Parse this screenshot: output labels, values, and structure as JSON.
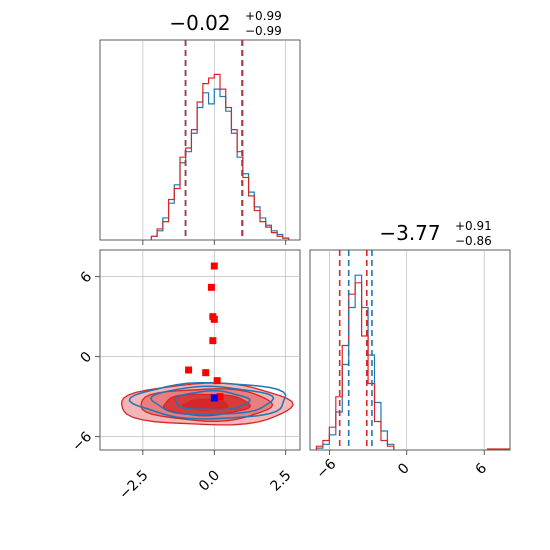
{
  "chart_data": {
    "type": "corner",
    "panels": [
      {
        "id": "param0-hist",
        "type": "histogram",
        "title_value": "−0.02",
        "title_plus": "+0.99",
        "title_minus": "−0.99",
        "xlim": [
          -4,
          3
        ],
        "grid": true,
        "series": [
          {
            "color": "#1f77b4",
            "quantiles": [
              -1.0,
              0.99
            ]
          },
          {
            "color": "#d62728",
            "quantiles": [
              -1.01,
              0.97
            ]
          }
        ],
        "bins": [
          -2.2,
          -2.0,
          -1.8,
          -1.6,
          -1.4,
          -1.2,
          -1.0,
          -0.8,
          -0.6,
          -0.4,
          -0.2,
          0.0,
          0.2,
          0.4,
          0.6,
          0.8,
          1.0,
          1.2,
          1.4,
          1.6,
          1.8,
          2.0,
          2.2,
          2.4,
          2.6
        ],
        "counts_blue": [
          0.02,
          0.05,
          0.12,
          0.2,
          0.3,
          0.42,
          0.48,
          0.58,
          0.72,
          0.8,
          0.74,
          0.82,
          0.78,
          0.7,
          0.58,
          0.45,
          0.36,
          0.26,
          0.18,
          0.12,
          0.08,
          0.05,
          0.03,
          0.01
        ],
        "counts_red": [
          0.02,
          0.06,
          0.1,
          0.22,
          0.28,
          0.45,
          0.5,
          0.6,
          0.75,
          0.85,
          0.88,
          0.9,
          0.82,
          0.72,
          0.6,
          0.48,
          0.34,
          0.24,
          0.16,
          0.1,
          0.07,
          0.04,
          0.02,
          0.01
        ]
      },
      {
        "id": "param1-hist",
        "type": "histogram",
        "title_value": "−3.77",
        "title_plus": "+0.91",
        "title_minus": "−0.86",
        "xlim": [
          -7.5,
          8
        ],
        "ticks": [
          "−6",
          "0",
          "6"
        ],
        "grid": true,
        "series": [
          {
            "color": "#1f77b4",
            "quantiles": [
              -4.5,
              -2.7
            ]
          },
          {
            "color": "#d62728",
            "quantiles": [
              -5.2,
              -3.1
            ]
          }
        ],
        "bins": [
          -7,
          -6.5,
          -6,
          -5.5,
          -5,
          -4.5,
          -4,
          -3.5,
          -3,
          -2.5,
          -2,
          -1.5,
          -1
        ],
        "counts_blue": [
          0.01,
          0.03,
          0.08,
          0.2,
          0.45,
          0.75,
          0.92,
          0.75,
          0.5,
          0.25,
          0.1,
          0.03
        ],
        "counts_red": [
          0.02,
          0.05,
          0.12,
          0.28,
          0.55,
          0.82,
          0.88,
          0.6,
          0.35,
          0.15,
          0.05,
          0.02
        ]
      },
      {
        "id": "joint",
        "type": "contour-scatter",
        "xlim": [
          -4,
          3
        ],
        "ylim": [
          -7,
          8
        ],
        "xticks": [
          "−2.5",
          "0.0",
          "2.5"
        ],
        "yticks": [
          "6",
          "0",
          "−6"
        ],
        "grid": true,
        "red_markers": [
          [
            0.0,
            6.8
          ],
          [
            -0.1,
            5.2
          ],
          [
            -0.05,
            3.0
          ],
          [
            0.0,
            2.8
          ],
          [
            -0.05,
            1.2
          ],
          [
            -0.9,
            -1.0
          ],
          [
            -0.3,
            -1.2
          ],
          [
            0.1,
            -1.8
          ],
          [
            0.2,
            -3.0
          ]
        ],
        "blue_markers": [
          [
            0.0,
            -3.1
          ]
        ]
      }
    ]
  }
}
